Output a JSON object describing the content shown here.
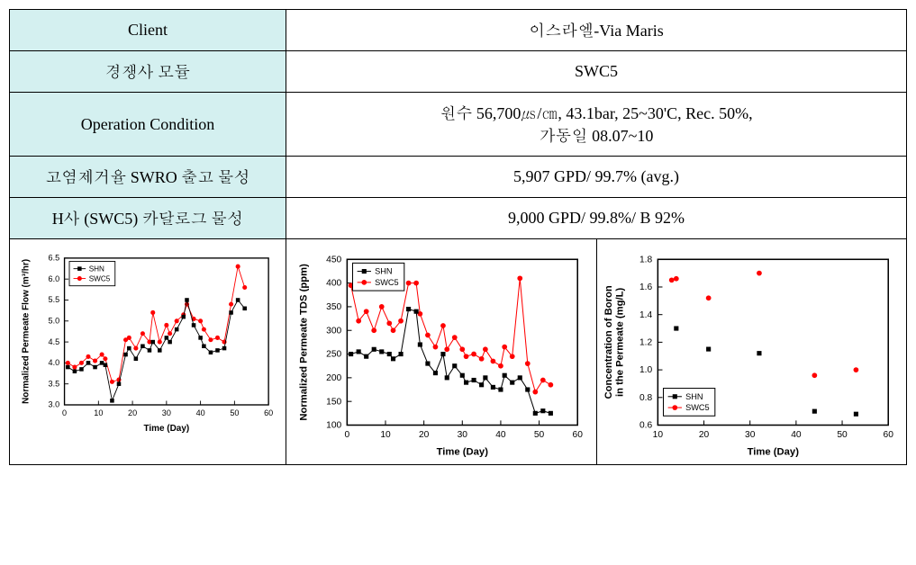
{
  "table": {
    "rows": [
      {
        "label": "Client",
        "value": "이스라엘-Via Maris"
      },
      {
        "label": "경쟁사 모듈",
        "value": "SWC5"
      },
      {
        "label": "Operation Condition",
        "value": "원수 56,700㎲/㎝, 43.1bar,  25~30'C,  Rec. 50%,\n가동일 08.07~10"
      },
      {
        "label": "고염제거율 SWRO 출고 물성",
        "value": "5,907 GPD/ 99.7% (avg.)"
      },
      {
        "label": "H사 (SWC5) 카달로그 물성",
        "value": "9,000 GPD/ 99.8%/ B 92%"
      }
    ]
  },
  "charts": {
    "legend": {
      "series1": "SHN",
      "series2": "SWC5",
      "s1_color": "#000000",
      "s2_color": "#ff0000"
    },
    "chart1": {
      "type": "line",
      "xlabel": "Time (Day)",
      "ylabel": "Normalized Permeate Flow (m³/hr)",
      "xlim": [
        0,
        60
      ],
      "xtick_step": 10,
      "ylim": [
        3.0,
        6.5
      ],
      "ytick_step": 0.5,
      "background_color": "#ffffff",
      "s1_x": [
        1,
        3,
        5,
        7,
        9,
        11,
        12,
        14,
        16,
        18,
        19,
        21,
        23,
        25,
        26,
        28,
        30,
        31,
        33,
        35,
        36,
        38,
        40,
        41,
        43,
        45,
        47,
        49,
        51,
        53
      ],
      "s1_y": [
        3.9,
        3.8,
        3.85,
        4.0,
        3.9,
        4.0,
        3.95,
        3.1,
        3.5,
        4.2,
        4.35,
        4.1,
        4.4,
        4.3,
        4.5,
        4.3,
        4.6,
        4.5,
        4.8,
        5.1,
        5.5,
        4.9,
        4.6,
        4.4,
        4.25,
        4.3,
        4.35,
        5.2,
        5.5,
        5.3
      ],
      "s2_x": [
        1,
        3,
        5,
        7,
        9,
        11,
        12,
        14,
        16,
        18,
        19,
        21,
        23,
        25,
        26,
        28,
        30,
        31,
        33,
        35,
        36,
        38,
        40,
        41,
        43,
        45,
        47,
        49,
        51,
        53
      ],
      "s2_y": [
        4.0,
        3.9,
        4.0,
        4.15,
        4.05,
        4.2,
        4.1,
        3.55,
        3.6,
        4.55,
        4.6,
        4.35,
        4.7,
        4.5,
        5.2,
        4.5,
        4.9,
        4.7,
        5.0,
        5.15,
        5.4,
        5.05,
        5.0,
        4.8,
        4.55,
        4.6,
        4.5,
        5.4,
        6.3,
        5.8
      ]
    },
    "chart2": {
      "type": "line",
      "xlabel": "Time (Day)",
      "ylabel": "Normalized Permeate TDS (ppm)",
      "xlim": [
        0,
        60
      ],
      "xtick_step": 10,
      "ylim": [
        100,
        450
      ],
      "ytick_step": 50,
      "background_color": "#ffffff",
      "s1_x": [
        1,
        3,
        5,
        7,
        9,
        11,
        12,
        14,
        16,
        18,
        19,
        21,
        23,
        25,
        26,
        28,
        30,
        31,
        33,
        35,
        36,
        38,
        40,
        41,
        43,
        45,
        47,
        49,
        51,
        53
      ],
      "s1_y": [
        250,
        255,
        245,
        260,
        255,
        250,
        240,
        250,
        345,
        340,
        270,
        230,
        210,
        250,
        200,
        225,
        205,
        190,
        195,
        185,
        200,
        180,
        175,
        205,
        190,
        200,
        175,
        125,
        130,
        125
      ],
      "s2_x": [
        1,
        3,
        5,
        7,
        9,
        11,
        12,
        14,
        16,
        18,
        19,
        21,
        23,
        25,
        26,
        28,
        30,
        31,
        33,
        35,
        36,
        38,
        40,
        41,
        43,
        45,
        47,
        49,
        51,
        53
      ],
      "s2_y": [
        395,
        320,
        340,
        300,
        350,
        315,
        300,
        320,
        400,
        400,
        335,
        290,
        265,
        310,
        260,
        285,
        260,
        245,
        250,
        240,
        260,
        235,
        225,
        265,
        245,
        410,
        230,
        170,
        195,
        185
      ]
    },
    "chart3": {
      "type": "scatter",
      "xlabel": "Time (Day)",
      "ylabel": "Concentration of Boron\nin the Permeate (mg/L)",
      "xlim": [
        10,
        60
      ],
      "xtick_step": 10,
      "ylim": [
        0.6,
        1.8
      ],
      "ytick_step": 0.2,
      "background_color": "#ffffff",
      "s1_x": [
        14,
        21,
        32,
        44,
        53
      ],
      "s1_y": [
        1.3,
        1.15,
        1.12,
        0.7,
        0.68
      ],
      "s2_x": [
        13,
        14,
        21,
        32,
        44,
        53
      ],
      "s2_y": [
        1.65,
        1.66,
        1.52,
        1.7,
        0.96,
        1.0
      ]
    }
  }
}
